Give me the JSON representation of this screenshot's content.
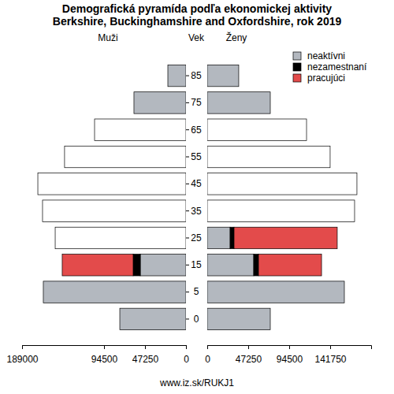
{
  "chart_data": [
    {
      "type": "bar",
      "orientation": "horizontal",
      "stacked": true,
      "title": "Demografická pyramída podľa ekonomickej aktivity",
      "subtitle": "Berkshire, Buckinghamshire and Oxfordshire, rok 2019",
      "x_label": "Muži",
      "y_label": "Vek",
      "source": "www.iz.sk/RUKJ1",
      "legend": "top-right",
      "categories": [
        "0",
        "5",
        "15",
        "25",
        "35",
        "45",
        "55",
        "65",
        "75",
        "85"
      ],
      "xlim": [
        189000,
        0
      ],
      "xticks": [
        189000,
        94500,
        47250,
        0
      ],
      "series": [
        {
          "name": "neaktívni",
          "color": "#b3b8bf",
          "values": [
            76300,
            164500,
            52700,
            null,
            null,
            null,
            null,
            null,
            60000,
            20900
          ]
        },
        {
          "name": "nezamestnaní",
          "color": "#000000",
          "values": [
            null,
            null,
            8200,
            null,
            null,
            null,
            null,
            null,
            null,
            null
          ]
        },
        {
          "name": "pracujúci",
          "color": "#e34b4b",
          "values": [
            null,
            null,
            81800,
            null,
            null,
            null,
            null,
            null,
            null,
            null
          ]
        },
        {
          "color": "#ffffff",
          "values": [
            null,
            null,
            null,
            150800,
            165400,
            170800,
            140000,
            105400,
            null,
            null
          ]
        }
      ]
    },
    {
      "type": "bar",
      "orientation": "horizontal",
      "stacked": true,
      "x_label": "Ženy",
      "tick_labels": "x",
      "categories": [
        "0",
        "5",
        "15",
        "25",
        "35",
        "45",
        "55",
        "65",
        "75",
        "85"
      ],
      "xlim": [
        0,
        189000
      ],
      "xticks": [
        0,
        47250,
        94500,
        141750
      ],
      "series": [
        {
          "color": "#b3b8bf",
          "values": [
            72700,
            158100,
            53600,
            26400,
            null,
            null,
            null,
            null,
            72700,
            36300
          ]
        },
        {
          "color": "#000000",
          "values": [
            null,
            null,
            5500,
            4500,
            null,
            null,
            null,
            null,
            null,
            null
          ]
        },
        {
          "color": "#e34b4b",
          "values": [
            null,
            null,
            72700,
            119000,
            null,
            null,
            null,
            null,
            null,
            null
          ]
        },
        {
          "color": "#ffffff",
          "values": [
            null,
            null,
            null,
            null,
            169900,
            172600,
            141700,
            114500,
            null,
            null
          ]
        }
      ]
    }
  ]
}
